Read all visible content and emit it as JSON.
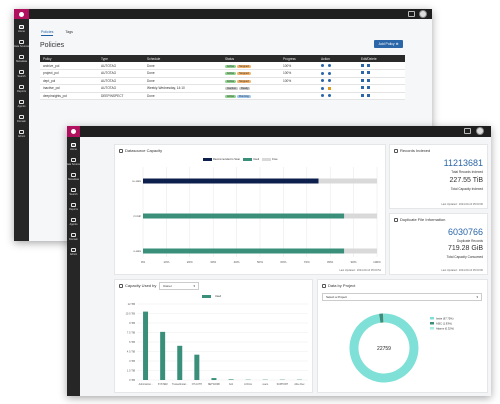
{
  "nav": {
    "items": [
      {
        "label": "Home"
      },
      {
        "label": "Data Sources"
      },
      {
        "label": "Metadata"
      },
      {
        "label": "Search"
      },
      {
        "label": "Reports"
      },
      {
        "label": "Agents"
      },
      {
        "label": "Domain"
      },
      {
        "label": "Admin"
      }
    ]
  },
  "policies": {
    "tabs": [
      "Policies",
      "Tags"
    ],
    "title": "Policies",
    "add_button": "Add Policy",
    "columns": [
      "Policy",
      "Type",
      "Schedule",
      "Status",
      "Progress",
      "Action",
      "Edit/Delete"
    ],
    "rows": [
      {
        "policy": "archive_pol",
        "type": "AUTOTAG",
        "schedule": "Done",
        "status": [
          "Active",
          "Stopped"
        ],
        "progress": "100%"
      },
      {
        "policy": "project_pol",
        "type": "AUTOTAG",
        "schedule": "Done",
        "status": [
          "Active",
          "Stopped"
        ],
        "progress": "100%"
      },
      {
        "policy": "dept_pol",
        "type": "AUTOTAG",
        "schedule": "Done",
        "status": [
          "Active",
          "Stopped"
        ],
        "progress": "100%"
      },
      {
        "policy": "inactive_pol",
        "type": "AUTOTAG",
        "schedule": "Weekly-Wednesday, 14:10",
        "status": [
          "Inactive",
          "Ready"
        ],
        "progress": ""
      },
      {
        "policy": "deepinsights_pol",
        "type": "DEEPINSPECT",
        "schedule": "Done",
        "status": [
          "Active",
          "Running"
        ],
        "progress": ""
      }
    ]
  },
  "dashboard": {
    "datasource_capacity": {
      "title": "Datasource Capacity",
      "legend": [
        "Recommended to Scan",
        "Used",
        "Free"
      ],
      "rows": [
        "ie-wks",
        "rmtdc",
        "s-wks"
      ],
      "x_ticks": [
        "0%",
        "10%",
        "20%",
        "30%",
        "40%",
        "50%",
        "60%",
        "70%",
        "80%",
        "90%",
        "100%"
      ],
      "footer": "Last Updated : 2024-09-10 05:00:51"
    },
    "records_indexed": {
      "title": "Records Indexed",
      "count": "11213681",
      "count_label": "Total Records Indexed",
      "capacity": "227.55 TiB",
      "capacity_label": "Total Capacity Indexed",
      "footer": "Last Updated : 2024-09-10 05:00:00"
    },
    "duplicate_info": {
      "title": "Duplicate File Information",
      "count": "6030766",
      "count_label": "Duplicate Records",
      "capacity": "719.28 GiB",
      "capacity_label": "Total Capacity Consumed",
      "footer": "Last Updated : 2024-09-10 05:00:00"
    },
    "capacity_used_by": {
      "title": "Capacity Used by",
      "select": "Owner",
      "legend": "Used",
      "y_ticks": [
        "0 TiB",
        "1.5 TiB",
        "3 TiB",
        "4.5 TiB",
        "6 TiB",
        "7.5 TiB",
        "9 TiB",
        "10.5 TiB",
        "12 TiB"
      ],
      "categories": [
        "Administrat...",
        "SYSTEM",
        "TrustedInstal...",
        "NT AUTH",
        "NETWORK",
        "bob",
        "LOCAL",
        "users",
        "SUPPORT",
        "Alice Dev"
      ]
    },
    "data_by_project": {
      "title": "Data by Project",
      "select": "Select a Project",
      "center": "22759",
      "legend": [
        "Insite (97.75%)",
        "ASIC (1.93%)",
        "Adams (0.32%)"
      ]
    }
  },
  "chart_data": [
    {
      "type": "bar",
      "title": "Datasource Capacity",
      "categories": [
        "ie-wks",
        "rmtdc",
        "s-wks"
      ],
      "series": [
        {
          "name": "Recommended to Scan",
          "values": [
            75,
            0,
            0
          ]
        },
        {
          "name": "Used",
          "values": [
            0,
            86,
            86
          ]
        },
        {
          "name": "Free",
          "values": [
            25,
            14,
            14
          ]
        }
      ],
      "xlim": [
        0,
        100
      ]
    },
    {
      "type": "bar",
      "title": "Capacity Used by",
      "categories": [
        "Administrat...",
        "SYSTEM",
        "TrustedInstal...",
        "NT AUTH",
        "NETWORK",
        "bob",
        "LOCAL",
        "users",
        "SUPPORT",
        "Alice Dev"
      ],
      "series": [
        {
          "name": "Used",
          "values": [
            10.8,
            7.6,
            5.4,
            4.0,
            0.3,
            0.1,
            0.05,
            0.05,
            0.05,
            0.05
          ]
        }
      ],
      "ylim": [
        0,
        12
      ]
    },
    {
      "type": "pie",
      "title": "Data by Project",
      "labels": [
        "Insite",
        "ASIC",
        "Adams"
      ],
      "values": [
        97.75,
        1.93,
        0.32
      ],
      "center_value": 22759
    }
  ],
  "colors": {
    "brand": "#b0105d",
    "nav_bg": "#262626",
    "accent_blue": "#2b66a8",
    "used_green": "#3a8f7a",
    "recommended_navy": "#0d1f4d",
    "free_gray": "#d9d9d9",
    "donut_main": "#7fe0d8"
  }
}
